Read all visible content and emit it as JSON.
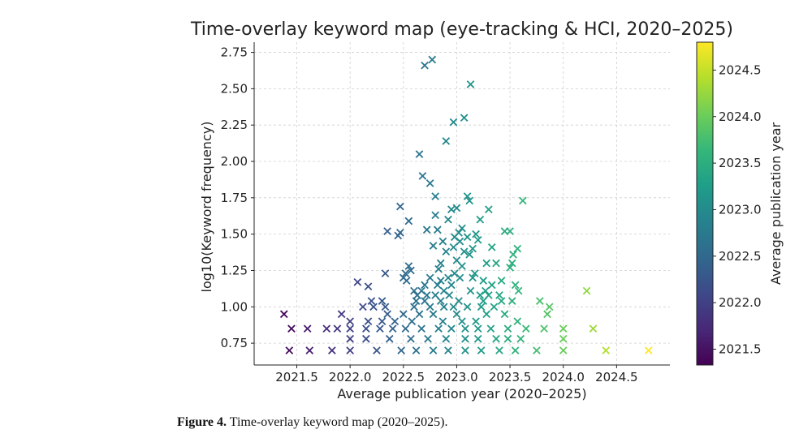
{
  "caption": {
    "label": "Figure 4.",
    "text": "Time-overlay keyword map (2020–2025)."
  },
  "chart_data": {
    "type": "scatter",
    "title": "Time-overlay keyword map (eye-tracking & HCI, 2020–2025)",
    "xlabel": "Average publication year (2020–2025)",
    "ylabel": "log10(Keyword frequency)",
    "colorbar_label": "Average publication year",
    "marker": "x",
    "colormap": "viridis",
    "grid": true,
    "xlim": [
      2021.1,
      2025.0
    ],
    "ylim": [
      0.6,
      2.82
    ],
    "xticks": [
      2021.5,
      2022.0,
      2022.5,
      2023.0,
      2023.5,
      2024.0,
      2024.5
    ],
    "xtick_labels": [
      "2021.5",
      "2022.0",
      "2022.5",
      "2023.0",
      "2023.5",
      "2024.0",
      "2024.5"
    ],
    "yticks": [
      0.75,
      1.0,
      1.25,
      1.5,
      1.75,
      2.0,
      2.25,
      2.5,
      2.75
    ],
    "ytick_labels": [
      "0.75",
      "1.00",
      "1.25",
      "1.50",
      "1.75",
      "2.00",
      "2.25",
      "2.50",
      "2.75"
    ],
    "colorbar_range": [
      2021.33,
      2024.8
    ],
    "colorbar_ticks": [
      2021.5,
      2022.0,
      2022.5,
      2023.0,
      2023.5,
      2024.0,
      2024.5
    ],
    "colorbar_tick_labels": [
      "2021.5",
      "2022.0",
      "2022.5",
      "2023.0",
      "2023.5",
      "2024.0",
      "2024.5"
    ],
    "points": [
      [
        2021.38,
        0.95
      ],
      [
        2021.43,
        0.7
      ],
      [
        2021.45,
        0.85
      ],
      [
        2021.6,
        0.85
      ],
      [
        2021.62,
        0.7
      ],
      [
        2021.78,
        0.85
      ],
      [
        2021.83,
        0.7
      ],
      [
        2021.88,
        0.85
      ],
      [
        2021.92,
        0.95
      ],
      [
        2022.0,
        0.7
      ],
      [
        2022.0,
        0.78
      ],
      [
        2022.0,
        0.85
      ],
      [
        2022.0,
        0.9
      ],
      [
        2022.07,
        1.17
      ],
      [
        2022.12,
        1.0
      ],
      [
        2022.15,
        0.78
      ],
      [
        2022.15,
        0.85
      ],
      [
        2022.17,
        0.9
      ],
      [
        2022.17,
        1.14
      ],
      [
        2022.2,
        1.04
      ],
      [
        2022.22,
        1.0
      ],
      [
        2022.25,
        0.7
      ],
      [
        2022.28,
        0.85
      ],
      [
        2022.3,
        0.9
      ],
      [
        2022.3,
        1.04
      ],
      [
        2022.33,
        1.0
      ],
      [
        2022.33,
        1.23
      ],
      [
        2022.35,
        0.95
      ],
      [
        2022.35,
        1.52
      ],
      [
        2022.37,
        0.78
      ],
      [
        2022.4,
        0.85
      ],
      [
        2022.42,
        0.9
      ],
      [
        2022.45,
        1.49
      ],
      [
        2022.47,
        1.51
      ],
      [
        2022.47,
        1.69
      ],
      [
        2022.48,
        0.7
      ],
      [
        2022.5,
        0.95
      ],
      [
        2022.5,
        1.2
      ],
      [
        2022.52,
        0.85
      ],
      [
        2022.52,
        1.23
      ],
      [
        2022.53,
        1.18
      ],
      [
        2022.55,
        1.28
      ],
      [
        2022.55,
        1.59
      ],
      [
        2022.57,
        0.78
      ],
      [
        2022.57,
        1.25
      ],
      [
        2022.58,
        0.9
      ],
      [
        2022.6,
        1.0
      ],
      [
        2022.6,
        1.11
      ],
      [
        2022.62,
        0.7
      ],
      [
        2022.62,
        1.04
      ],
      [
        2022.63,
        1.08
      ],
      [
        2022.65,
        2.05
      ],
      [
        2022.65,
        0.95
      ],
      [
        2022.67,
        0.85
      ],
      [
        2022.67,
        1.11
      ],
      [
        2022.68,
        1.9
      ],
      [
        2022.7,
        1.04
      ],
      [
        2022.7,
        1.15
      ],
      [
        2022.7,
        2.66
      ],
      [
        2022.72,
        1.08
      ],
      [
        2022.72,
        1.53
      ],
      [
        2022.73,
        0.78
      ],
      [
        2022.75,
        1.0
      ],
      [
        2022.75,
        1.2
      ],
      [
        2022.75,
        1.85
      ],
      [
        2022.77,
        2.7
      ],
      [
        2022.78,
        0.7
      ],
      [
        2022.78,
        0.95
      ],
      [
        2022.78,
        1.42
      ],
      [
        2022.8,
        1.08
      ],
      [
        2022.8,
        1.76
      ],
      [
        2022.8,
        1.63
      ],
      [
        2022.82,
        1.15
      ],
      [
        2022.82,
        1.53
      ],
      [
        2022.83,
        1.26
      ],
      [
        2022.83,
        0.85
      ],
      [
        2022.85,
        1.04
      ],
      [
        2022.85,
        1.18
      ],
      [
        2022.85,
        1.3
      ],
      [
        2022.87,
        0.9
      ],
      [
        2022.87,
        1.45
      ],
      [
        2022.88,
        1.11
      ],
      [
        2022.88,
        1.0
      ],
      [
        2022.9,
        0.78
      ],
      [
        2022.9,
        1.38
      ],
      [
        2022.9,
        2.14
      ],
      [
        2022.92,
        1.2
      ],
      [
        2022.92,
        0.7
      ],
      [
        2022.92,
        1.6
      ],
      [
        2022.93,
        1.08
      ],
      [
        2022.95,
        1.15
      ],
      [
        2022.95,
        0.85
      ],
      [
        2022.95,
        1.67
      ],
      [
        2022.97,
        1.0
      ],
      [
        2022.97,
        1.41
      ],
      [
        2022.97,
        2.27
      ],
      [
        2022.98,
        1.48
      ],
      [
        2022.98,
        1.23
      ],
      [
        2023.0,
        1.68
      ],
      [
        2023.0,
        1.32
      ],
      [
        2023.0,
        0.95
      ],
      [
        2023.02,
        1.51
      ],
      [
        2023.02,
        1.04
      ],
      [
        2023.03,
        1.45
      ],
      [
        2023.03,
        1.2
      ],
      [
        2023.05,
        0.9
      ],
      [
        2023.05,
        1.54
      ],
      [
        2023.05,
        1.28
      ],
      [
        2023.07,
        1.38
      ],
      [
        2023.07,
        2.3
      ],
      [
        2023.08,
        0.7
      ],
      [
        2023.08,
        0.78
      ],
      [
        2023.08,
        0.85
      ],
      [
        2023.1,
        1.0
      ],
      [
        2023.1,
        1.48
      ],
      [
        2023.1,
        1.76
      ],
      [
        2023.12,
        1.73
      ],
      [
        2023.12,
        1.36
      ],
      [
        2023.13,
        1.11
      ],
      [
        2023.13,
        2.53
      ],
      [
        2023.15,
        1.4
      ],
      [
        2023.15,
        1.2
      ],
      [
        2023.17,
        1.23
      ],
      [
        2023.18,
        1.5
      ],
      [
        2023.18,
        0.9
      ],
      [
        2023.2,
        0.85
      ],
      [
        2023.2,
        0.78
      ],
      [
        2023.2,
        1.46
      ],
      [
        2023.22,
        1.6
      ],
      [
        2023.22,
        1.08
      ],
      [
        2023.23,
        0.7
      ],
      [
        2023.23,
        1.0
      ],
      [
        2023.25,
        1.04
      ],
      [
        2023.25,
        1.18
      ],
      [
        2023.27,
        1.11
      ],
      [
        2023.28,
        1.3
      ],
      [
        2023.28,
        0.95
      ],
      [
        2023.3,
        1.67
      ],
      [
        2023.3,
        1.08
      ],
      [
        2023.32,
        0.85
      ],
      [
        2023.33,
        1.41
      ],
      [
        2023.33,
        1.15
      ],
      [
        2023.35,
        1.0
      ],
      [
        2023.37,
        0.78
      ],
      [
        2023.37,
        1.3
      ],
      [
        2023.4,
        0.7
      ],
      [
        2023.4,
        1.08
      ],
      [
        2023.42,
        1.18
      ],
      [
        2023.42,
        1.04
      ],
      [
        2023.45,
        0.95
      ],
      [
        2023.45,
        1.52
      ],
      [
        2023.48,
        0.78
      ],
      [
        2023.48,
        0.85
      ],
      [
        2023.5,
        1.52
      ],
      [
        2023.5,
        1.27
      ],
      [
        2023.52,
        1.04
      ],
      [
        2023.52,
        1.3
      ],
      [
        2023.53,
        1.36
      ],
      [
        2023.55,
        1.15
      ],
      [
        2023.55,
        0.7
      ],
      [
        2023.57,
        0.9
      ],
      [
        2023.57,
        1.4
      ],
      [
        2023.58,
        1.11
      ],
      [
        2023.6,
        0.78
      ],
      [
        2023.62,
        1.73
      ],
      [
        2023.65,
        0.85
      ],
      [
        2023.75,
        0.7
      ],
      [
        2023.78,
        1.04
      ],
      [
        2023.82,
        0.85
      ],
      [
        2023.85,
        0.95
      ],
      [
        2023.87,
        1.0
      ],
      [
        2024.0,
        0.85
      ],
      [
        2024.0,
        0.78
      ],
      [
        2024.0,
        0.7
      ],
      [
        2024.22,
        1.11
      ],
      [
        2024.28,
        0.85
      ],
      [
        2024.4,
        0.7
      ],
      [
        2024.8,
        0.7
      ]
    ]
  }
}
